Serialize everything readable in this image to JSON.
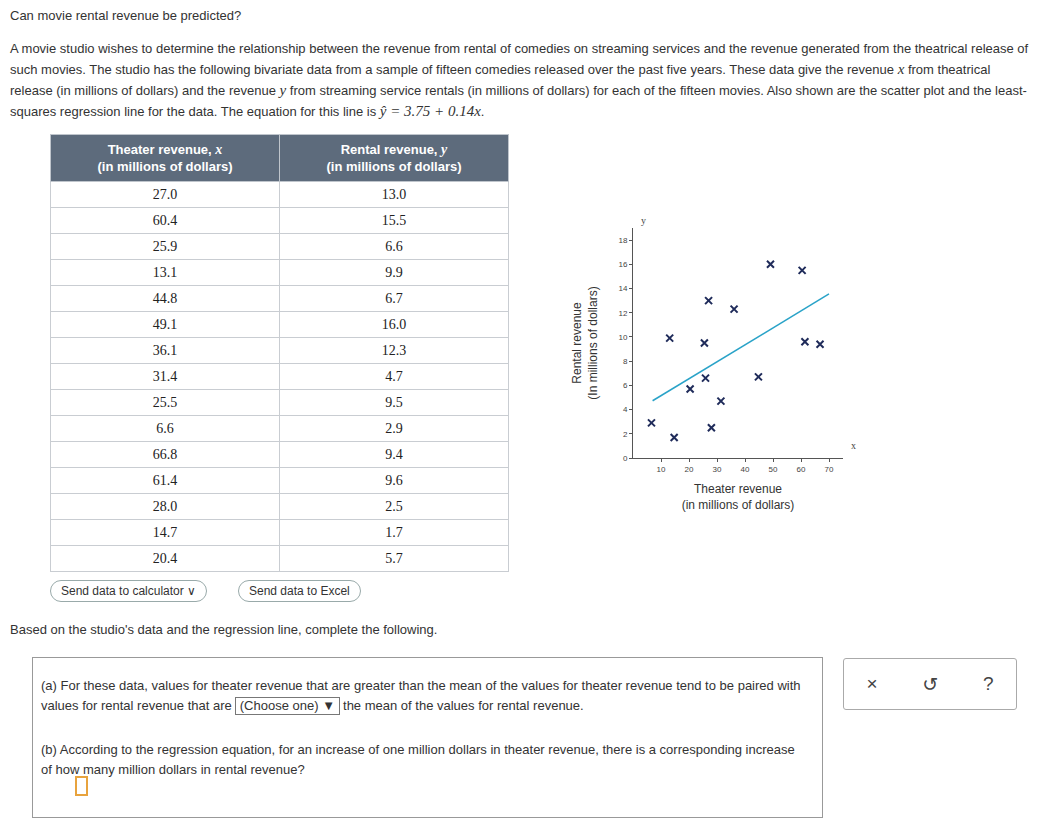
{
  "header": {
    "title": "Can movie rental revenue be predicted?"
  },
  "intro": [
    "A movie studio wishes to determine the relationship between the revenue from rental of comedies on streaming services and the revenue generated from the theatrical release of such movies. The studio has the following bivariate data from a sample of fifteen comedies released over the past five years. These data give the revenue ",
    {
      "math": "x"
    },
    " from theatrical release (in millions of dollars) and the revenue ",
    {
      "math": "y"
    },
    " from streaming service rentals (in millions of dollars) for each of the fifteen movies. Also shown are the scatter plot and the least-squares regression line for the data. The equation for this line is ",
    {
      "math": "ŷ = 3.75 + 0.14x"
    },
    "."
  ],
  "table": {
    "columns": [
      {
        "label": "Theater revenue, ",
        "var": "x",
        "unit": "(in millions of dollars)"
      },
      {
        "label": "Rental revenue, ",
        "var": "y",
        "unit": "(in millions of dollars)"
      }
    ],
    "rows": [
      [
        "27.0",
        "13.0"
      ],
      [
        "60.4",
        "15.5"
      ],
      [
        "25.9",
        "6.6"
      ],
      [
        "13.1",
        "9.9"
      ],
      [
        "44.8",
        "6.7"
      ],
      [
        "49.1",
        "16.0"
      ],
      [
        "36.1",
        "12.3"
      ],
      [
        "31.4",
        "4.7"
      ],
      [
        "25.5",
        "9.5"
      ],
      [
        "6.6",
        "2.9"
      ],
      [
        "66.8",
        "9.4"
      ],
      [
        "61.4",
        "9.6"
      ],
      [
        "28.0",
        "2.5"
      ],
      [
        "14.7",
        "1.7"
      ],
      [
        "20.4",
        "5.7"
      ]
    ]
  },
  "buttons": [
    "Send data to calculator ∨",
    "Send data to Excel"
  ],
  "prompt": "Based on the studio's data and the regression line, complete the following.",
  "questions": [
    {
      "label": "(a)",
      "parts": [
        "For these data, values for theater revenue that are greater than the mean of the values for theater revenue tend to be paired with values for rental revenue that are",
        {
          "select": "(Choose one) ▼"
        },
        "the mean of the values for rental revenue."
      ]
    },
    {
      "label": "(b)",
      "parts": [
        "According to the regression equation, for an increase of one million dollars in theater revenue, there is a corresponding increase of how many million dollars in rental revenue?"
      ]
    }
  ],
  "tools": [
    "×",
    "↺",
    "?"
  ],
  "chart_data": {
    "type": "scatter",
    "x_label": [
      "Theater revenue",
      "(in millions of dollars)"
    ],
    "y_label": [
      "Rental revenue",
      "(In millions of dollars)"
    ],
    "x_symbol": "x",
    "y_symbol": "y",
    "x": [
      27.0,
      60.4,
      25.9,
      13.1,
      44.8,
      49.1,
      36.1,
      31.4,
      25.5,
      6.6,
      66.8,
      61.4,
      28.0,
      14.7,
      20.4
    ],
    "values": [
      13.0,
      15.5,
      6.6,
      9.9,
      6.7,
      16.0,
      12.3,
      4.7,
      9.5,
      2.9,
      9.4,
      9.6,
      2.5,
      1.7,
      5.7
    ],
    "marker": "x",
    "color": "#1f2b5a",
    "regression_line": {
      "x": [
        7,
        70
      ],
      "values": [
        4.73,
        13.55
      ],
      "color": "#2aa3c8"
    },
    "xlim": [
      0,
      75
    ],
    "ylim": [
      0,
      19
    ],
    "xticks": [
      10,
      20,
      30,
      40,
      50,
      60,
      70
    ],
    "yticks": [
      0,
      2,
      4,
      6,
      8,
      10,
      12,
      14,
      16,
      18
    ],
    "grid": false
  }
}
